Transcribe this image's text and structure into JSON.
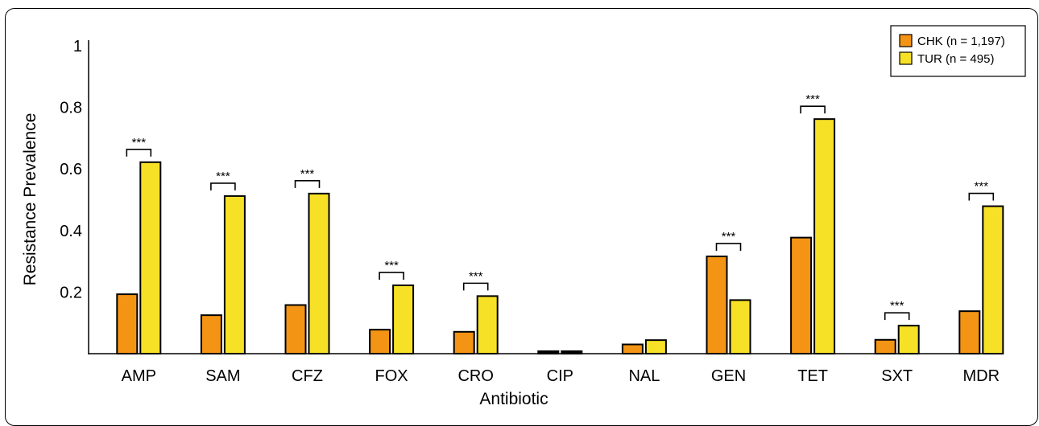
{
  "chart_data": {
    "type": "bar",
    "xlabel": "Antibiotic",
    "ylabel": "Resistance Prevalence",
    "ylim": [
      0,
      1
    ],
    "yticks": [
      0.2,
      0.4,
      0.6,
      0.8,
      1
    ],
    "ytick_labels": [
      "0.2",
      "0.4",
      "0.6",
      "0.8",
      "1"
    ],
    "categories": [
      "AMP",
      "SAM",
      "CFZ",
      "FOX",
      "CRO",
      "CIP",
      "NAL",
      "GEN",
      "TET",
      "SXT",
      "MDR"
    ],
    "series": [
      {
        "name": "CHK (n = 1,197)",
        "color": "#F39415",
        "values": [
          0.193,
          0.125,
          0.158,
          0.078,
          0.071,
          0.008,
          0.03,
          0.316,
          0.377,
          0.045,
          0.138
        ]
      },
      {
        "name": "TUR (n = 495)",
        "color": "#F6E127",
        "values": [
          0.622,
          0.512,
          0.52,
          0.222,
          0.187,
          0.008,
          0.044,
          0.174,
          0.762,
          0.091,
          0.479
        ]
      }
    ],
    "significance": [
      {
        "category": "AMP",
        "label": "***"
      },
      {
        "category": "SAM",
        "label": "***"
      },
      {
        "category": "CFZ",
        "label": "***"
      },
      {
        "category": "FOX",
        "label": "***"
      },
      {
        "category": "CRO",
        "label": "***"
      },
      {
        "category": "GEN",
        "label": "***"
      },
      {
        "category": "TET",
        "label": "***"
      },
      {
        "category": "SXT",
        "label": "***"
      },
      {
        "category": "MDR",
        "label": "***"
      }
    ],
    "legend_position": "top-right",
    "grid": false
  }
}
